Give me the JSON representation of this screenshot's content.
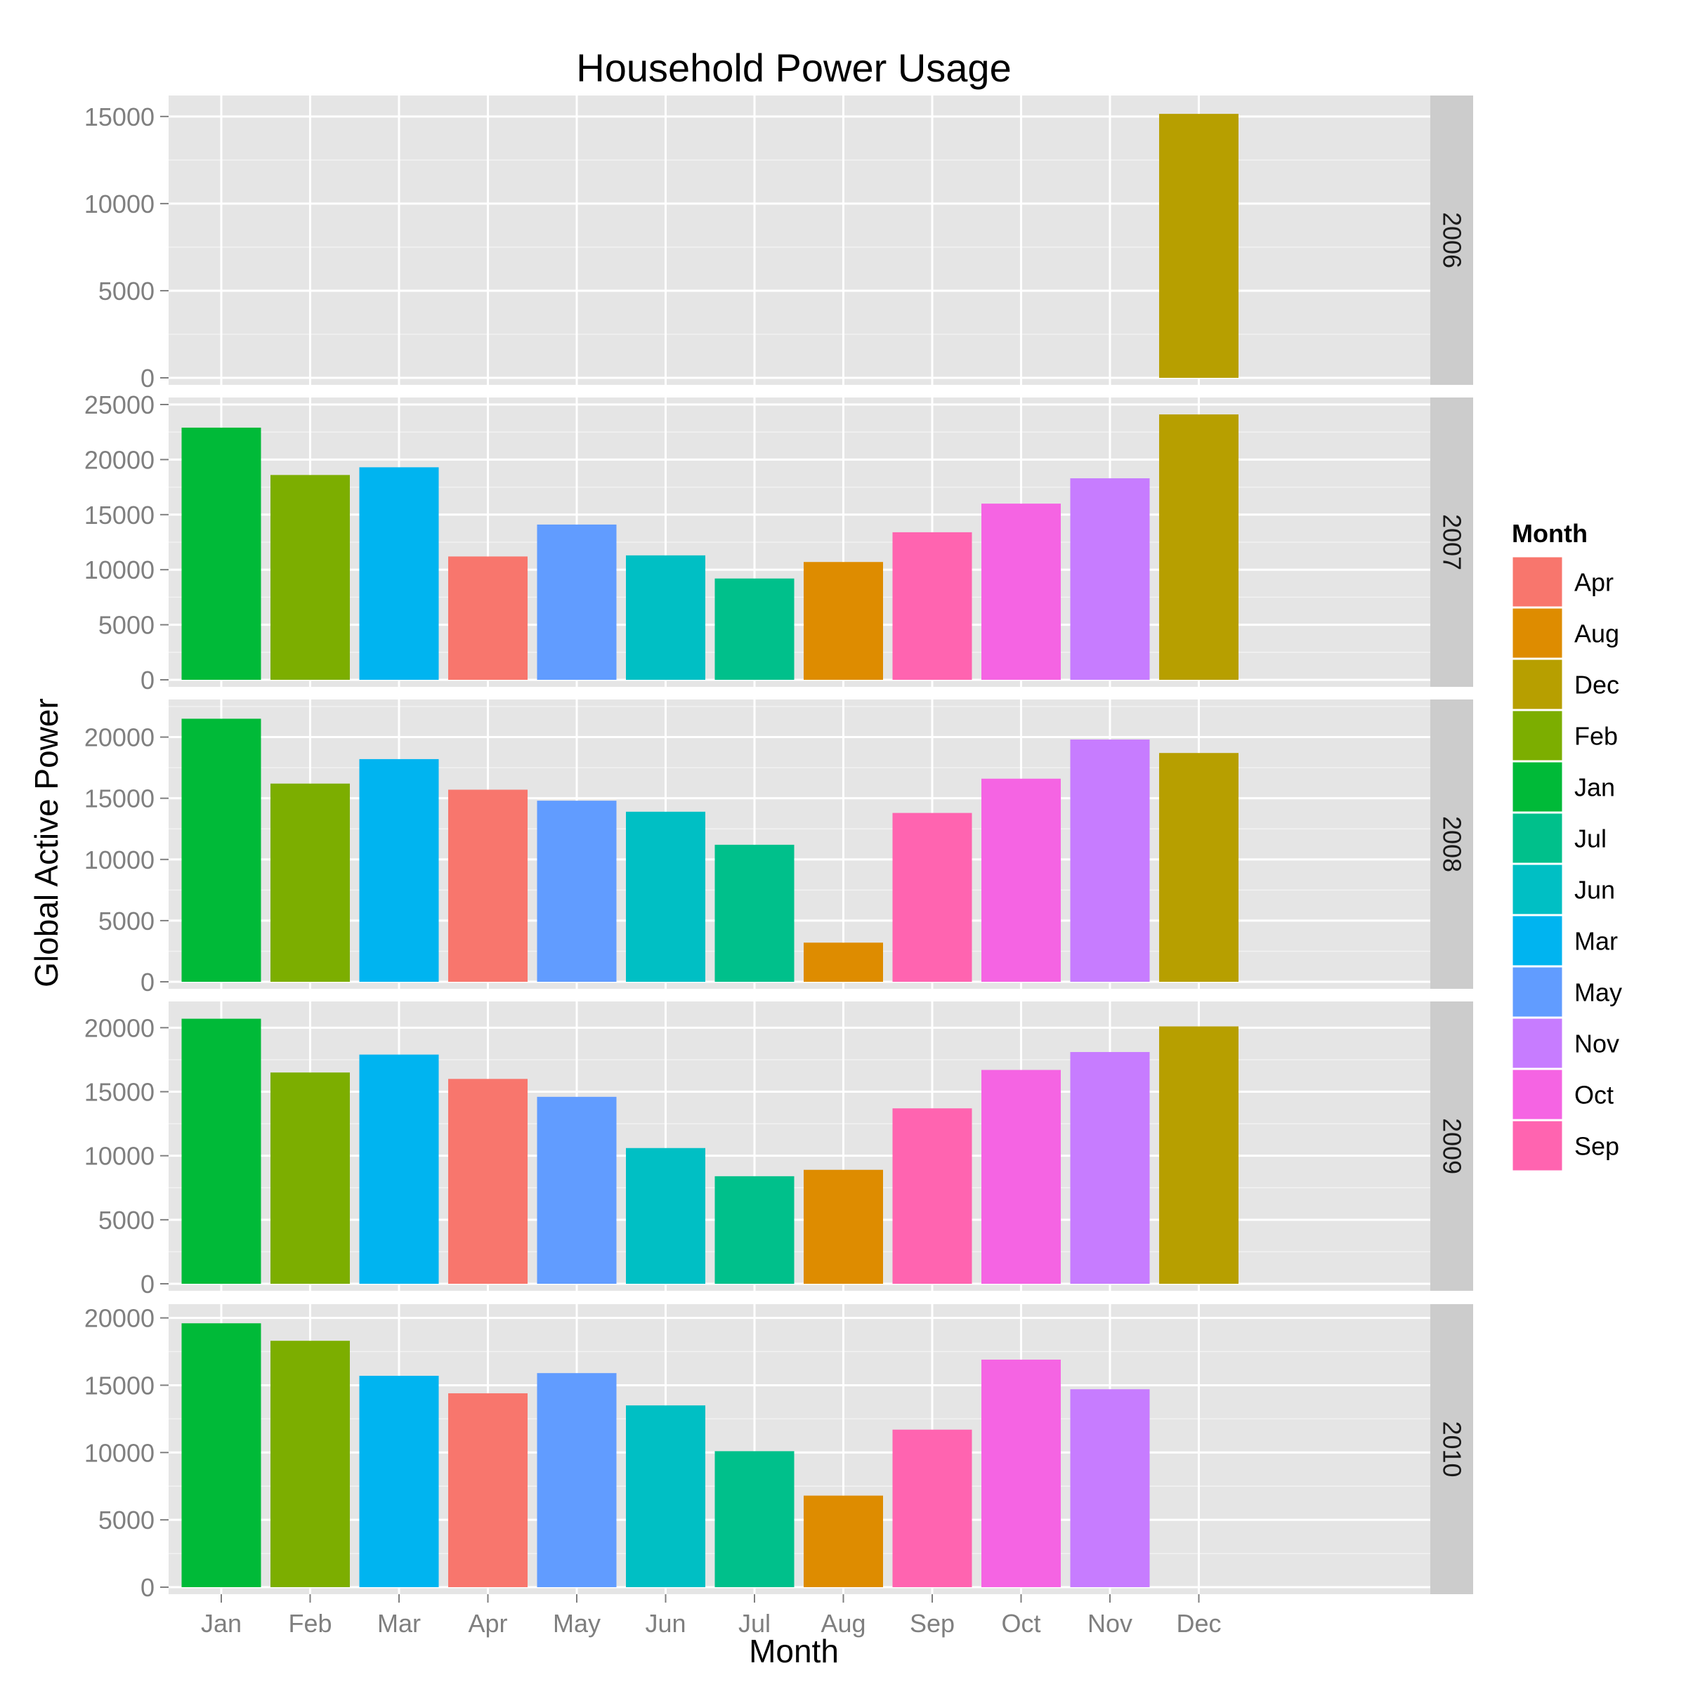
{
  "chart_data": {
    "type": "bar",
    "title": "Household Power Usage",
    "xlabel": "Month",
    "ylabel": "Global Active Power",
    "grid": true,
    "legend_position": "right",
    "legend": {
      "title": "Month",
      "items": [
        {
          "label": "Apr",
          "color": "#F8766D"
        },
        {
          "label": "Aug",
          "color": "#DE8C00"
        },
        {
          "label": "Dec",
          "color": "#B79F00"
        },
        {
          "label": "Feb",
          "color": "#7CAE00"
        },
        {
          "label": "Jan",
          "color": "#00BA38"
        },
        {
          "label": "Jul",
          "color": "#00C08B"
        },
        {
          "label": "Jun",
          "color": "#00BFC4"
        },
        {
          "label": "Mar",
          "color": "#00B4F0"
        },
        {
          "label": "May",
          "color": "#619CFF"
        },
        {
          "label": "Nov",
          "color": "#C77CFF"
        },
        {
          "label": "Oct",
          "color": "#F564E3"
        },
        {
          "label": "Sep",
          "color": "#FF64B0"
        }
      ]
    },
    "categories": [
      "Jan",
      "Feb",
      "Mar",
      "Apr",
      "May",
      "Jun",
      "Jul",
      "Aug",
      "Sep",
      "Oct",
      "Nov",
      "Dec"
    ],
    "facets": [
      {
        "label": "2006",
        "ylim": [
          0,
          15800
        ],
        "yticks": [
          0,
          5000,
          10000,
          15000
        ],
        "values": [
          null,
          null,
          null,
          null,
          null,
          null,
          null,
          null,
          null,
          null,
          null,
          15150
        ]
      },
      {
        "label": "2007",
        "ylim": [
          0,
          25000
        ],
        "yticks": [
          0,
          5000,
          10000,
          15000,
          20000,
          25000
        ],
        "values": [
          22900,
          18600,
          19300,
          11200,
          14100,
          11300,
          9200,
          10700,
          13400,
          16000,
          18300,
          24100
        ]
      },
      {
        "label": "2008",
        "ylim": [
          0,
          22500
        ],
        "yticks": [
          0,
          5000,
          10000,
          15000,
          20000
        ],
        "values": [
          21500,
          16200,
          18200,
          15700,
          14800,
          13900,
          11200,
          3200,
          13800,
          16600,
          19800,
          18700
        ]
      },
      {
        "label": "2009",
        "ylim": [
          0,
          21500
        ],
        "yticks": [
          0,
          5000,
          10000,
          15000,
          20000
        ],
        "values": [
          20700,
          16500,
          17900,
          16000,
          14600,
          10600,
          8400,
          8900,
          13700,
          16700,
          18100,
          20100
        ]
      },
      {
        "label": "2010",
        "ylim": [
          0,
          20500
        ],
        "yticks": [
          0,
          5000,
          10000,
          15000,
          20000
        ],
        "values": [
          19600,
          18300,
          15700,
          14400,
          15900,
          13500,
          10100,
          6800,
          11700,
          16900,
          14700,
          null
        ]
      }
    ]
  }
}
